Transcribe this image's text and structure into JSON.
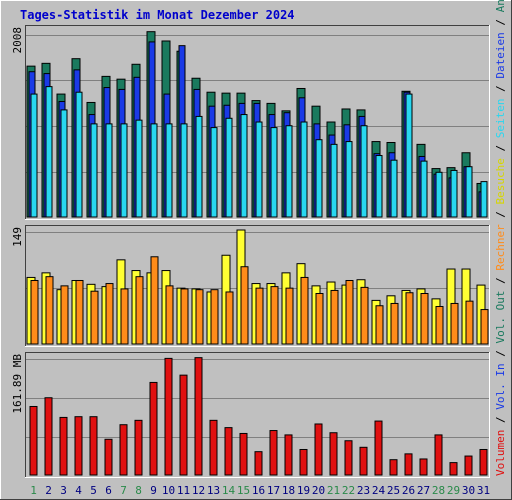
{
  "title": "Tages-Statistik im Monat Dezember 2024",
  "colors": {
    "background": "#c0c0c0",
    "plot_bg": "#c0c0c0",
    "grid": "#808080",
    "anfragen": "#1a7a5e",
    "dateien": "#1a3ae6",
    "seiten": "#28d7f0",
    "besuche": "#ffff33",
    "rechner": "#ff8c1a",
    "volumen": "#e01010",
    "weekday_label": "#000080",
    "weekend_label": "#2a8a4a"
  },
  "right_labels": {
    "top": [
      {
        "text": "Anfragen",
        "color": "#1a7a5e"
      },
      {
        "text": " / ",
        "color": "#000000"
      },
      {
        "text": "Dateien",
        "color": "#1a3ae6"
      },
      {
        "text": " / ",
        "color": "#000000"
      },
      {
        "text": "Seiten",
        "color": "#28d7f0"
      },
      {
        "text": " / ",
        "color": "#000000"
      },
      {
        "text": "Besuche",
        "color": "#d6d600"
      },
      {
        "text": " / ",
        "color": "#000000"
      },
      {
        "text": "Rechner",
        "color": "#ff8c1a"
      },
      {
        "text": " / ",
        "color": "#000000"
      },
      {
        "text": "Vol. Out",
        "color": "#1a7a5e"
      },
      {
        "text": " / ",
        "color": "#000000"
      },
      {
        "text": "Vol. In",
        "color": "#1a3ae6"
      },
      {
        "text": " / ",
        "color": "#000000"
      },
      {
        "text": "Volumen",
        "color": "#e01010"
      }
    ]
  },
  "chart_data": [
    {
      "type": "bar",
      "name": "requests-panel",
      "y_max_label": "2008",
      "ylim": [
        0,
        2008
      ],
      "x": [
        1,
        2,
        3,
        4,
        5,
        6,
        7,
        8,
        9,
        10,
        11,
        12,
        13,
        14,
        15,
        16,
        17,
        18,
        19,
        20,
        21,
        22,
        23,
        24,
        25,
        26,
        27,
        28,
        29,
        30,
        31
      ],
      "weekend_days": [
        1,
        7,
        8,
        14,
        15,
        21,
        22,
        28,
        29
      ],
      "series": [
        {
          "name": "Anfragen",
          "values": [
            1620,
            1650,
            1320,
            1700,
            1230,
            1510,
            1480,
            1640,
            1990,
            1890,
            1780,
            1490,
            1340,
            1330,
            1330,
            1250,
            1220,
            1140,
            1380,
            1190,
            1020,
            1160,
            1150,
            810,
            800,
            1350,
            780,
            520,
            530,
            690,
            360
          ]
        },
        {
          "name": "Dateien",
          "values": [
            1560,
            1540,
            1240,
            1580,
            1100,
            1390,
            1370,
            1500,
            1880,
            1320,
            1840,
            1370,
            1190,
            1200,
            1220,
            1220,
            1100,
            1120,
            1280,
            1000,
            880,
            990,
            1080,
            680,
            690,
            1340,
            650,
            460,
            420,
            540,
            270
          ]
        },
        {
          "name": "Seiten",
          "values": [
            1320,
            1400,
            1150,
            1340,
            1000,
            1000,
            1000,
            1040,
            1000,
            1000,
            1000,
            1080,
            960,
            1060,
            1100,
            1020,
            960,
            980,
            1020,
            830,
            780,
            810,
            980,
            660,
            610,
            1320,
            600,
            480,
            500,
            540,
            380
          ]
        }
      ]
    },
    {
      "type": "bar",
      "name": "visits-panel",
      "y_max_label": "149",
      "ylim": [
        0,
        149
      ],
      "x": [
        1,
        2,
        3,
        4,
        5,
        6,
        7,
        8,
        9,
        10,
        11,
        12,
        13,
        14,
        15,
        16,
        17,
        18,
        19,
        20,
        21,
        22,
        23,
        24,
        25,
        26,
        27,
        28,
        29,
        30,
        31
      ],
      "series": [
        {
          "name": "Besuche",
          "values": [
            87,
            93,
            71,
            83,
            78,
            75,
            110,
            96,
            93,
            96,
            73,
            72,
            68,
            116,
            149,
            79,
            79,
            93,
            105,
            76,
            81,
            77,
            84,
            57,
            63,
            70,
            72,
            59,
            98,
            98,
            77
          ]
        },
        {
          "name": "Rechner",
          "values": [
            83,
            88,
            76,
            83,
            69,
            79,
            72,
            88,
            114,
            76,
            72,
            71,
            71,
            68,
            101,
            73,
            75,
            73,
            87,
            66,
            70,
            83,
            74,
            50,
            53,
            67,
            66,
            49,
            53,
            56,
            45
          ]
        }
      ]
    },
    {
      "type": "bar",
      "name": "volume-panel",
      "y_max_label": "161.89 MB",
      "ylim": [
        0,
        161.89
      ],
      "x": [
        1,
        2,
        3,
        4,
        5,
        6,
        7,
        8,
        9,
        10,
        11,
        12,
        13,
        14,
        15,
        16,
        17,
        18,
        19,
        20,
        21,
        22,
        23,
        24,
        25,
        26,
        27,
        28,
        29,
        30,
        31
      ],
      "series": [
        {
          "name": "Volumen",
          "values": [
            94,
            106,
            79,
            80,
            80,
            49,
            69,
            75,
            127,
            160,
            137,
            161,
            75,
            65,
            57,
            32,
            61,
            55,
            35,
            70,
            58,
            47,
            38,
            74,
            21,
            29,
            22,
            55,
            17,
            26,
            35
          ]
        }
      ]
    }
  ]
}
